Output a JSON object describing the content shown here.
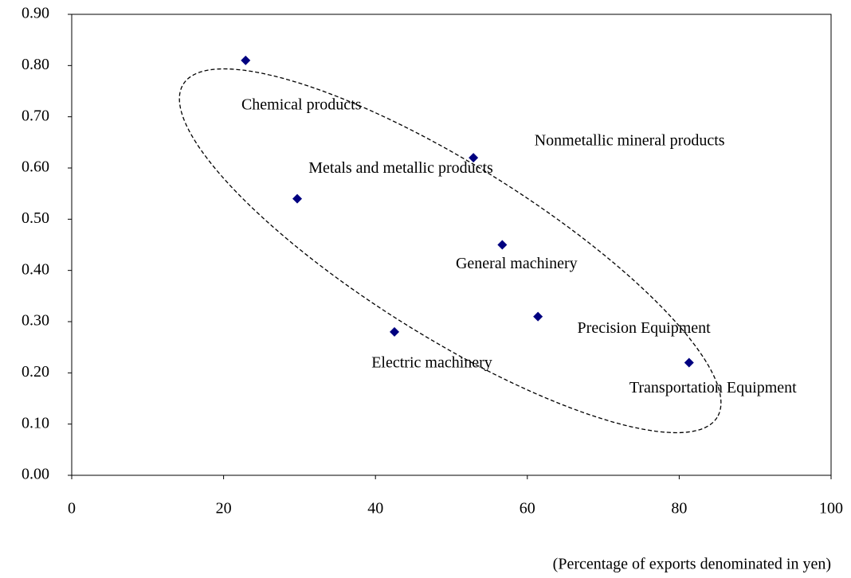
{
  "chart_data": {
    "type": "scatter",
    "x_label": "(Percentage of exports denominated in yen)",
    "labels": [
      "Chemical products",
      "Metals and metallic products",
      "Electric machinery",
      "Nonmetallic mineral products",
      "General machinery",
      "Precision Equipment",
      "Transportation Equipment"
    ],
    "x": [
      22.9,
      29.7,
      42.5,
      52.9,
      56.7,
      61.4,
      81.3
    ],
    "values": [
      0.81,
      0.54,
      0.28,
      0.62,
      0.45,
      0.31,
      0.22
    ],
    "color": "#000080",
    "xlim": [
      0,
      100
    ],
    "xticks": [
      0,
      20,
      40,
      60,
      80,
      100
    ],
    "ylim": [
      0,
      0.9
    ],
    "yticks": [
      {
        "value": 0,
        "label": "0.00"
      },
      {
        "value": 0.1,
        "label": "0.10"
      },
      {
        "value": 0.2,
        "label": "0.20"
      },
      {
        "value": 0.3,
        "label": "0.30"
      },
      {
        "value": 0.4,
        "label": "0.40"
      },
      {
        "value": 0.5,
        "label": "0.50"
      },
      {
        "value": 0.6,
        "label": "0.60"
      },
      {
        "value": 0.7,
        "label": "0.70"
      },
      {
        "value": 0.8,
        "label": "0.80"
      },
      {
        "value": 0.9,
        "label": "0.90"
      }
    ],
    "grid": false
  }
}
